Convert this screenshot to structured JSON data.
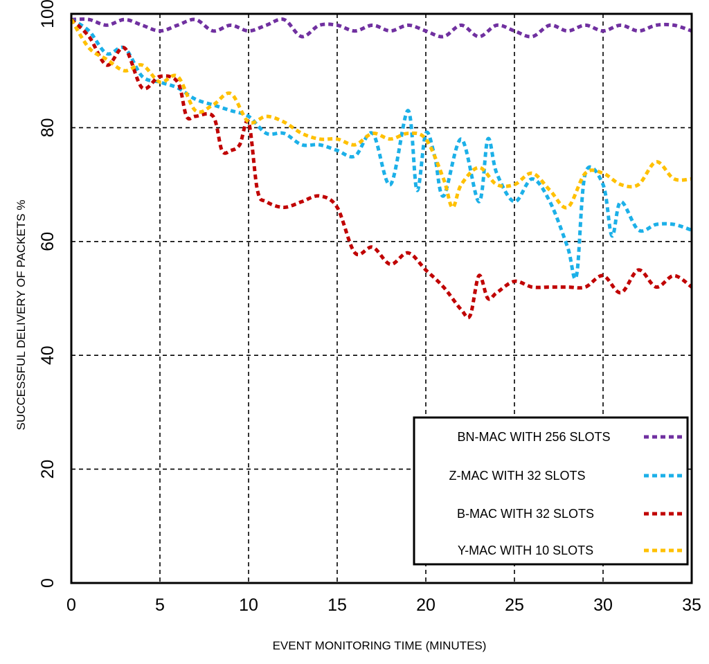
{
  "chart_data": {
    "type": "line",
    "xlabel": "EVENT MONITORING TIME (MINUTES)",
    "ylabel": "SUCCESSFUL DELIVERY OF PACKETS %",
    "xlim": [
      0,
      35
    ],
    "ylim": [
      0,
      100
    ],
    "x_ticks": [
      "0",
      "5",
      "10",
      "15",
      "20",
      "25",
      "30",
      "35"
    ],
    "y_ticks": [
      "0",
      "20",
      "40",
      "60",
      "80",
      "100"
    ],
    "grid": true,
    "legend_position": "bottom-right",
    "series": [
      {
        "name": "BN-MAC WITH 256 SLOTS",
        "color": "#7030A0",
        "x": [
          0,
          1,
          2,
          3,
          4,
          5,
          6,
          7,
          8,
          9,
          10,
          11,
          12,
          13,
          14,
          15,
          16,
          17,
          18,
          19,
          20,
          21,
          22,
          23,
          24,
          25,
          26,
          27,
          28,
          29,
          30,
          31,
          32,
          33,
          34,
          35
        ],
        "y": [
          99,
          99,
          98,
          99,
          98,
          97,
          98,
          99,
          97,
          98,
          97,
          98,
          99,
          96,
          98,
          98,
          97,
          98,
          97,
          98,
          97,
          96,
          98,
          96,
          98,
          97,
          96,
          98,
          97,
          98,
          97,
          98,
          97,
          98,
          98,
          97
        ]
      },
      {
        "name": "Z-MAC WITH 32 SLOTS",
        "color": "#1CB0E8",
        "x": [
          0,
          1,
          2,
          3,
          4,
          5,
          6,
          7,
          8,
          9,
          10,
          11,
          12,
          13,
          14,
          15,
          16,
          17,
          18,
          19,
          19.5,
          20,
          20.5,
          21,
          22,
          23,
          23.5,
          24,
          25,
          26,
          27,
          28,
          28.5,
          29,
          30,
          30.5,
          31,
          32,
          33,
          34,
          35
        ],
        "y": [
          99,
          97,
          93,
          94,
          89,
          88,
          87,
          85,
          84,
          83,
          82,
          79,
          79,
          77,
          77,
          76,
          75,
          79,
          70,
          83,
          69,
          79,
          75,
          68,
          78,
          67,
          78,
          72,
          67,
          71,
          67,
          59,
          54,
          72,
          70,
          61,
          67,
          62,
          63,
          63,
          62
        ]
      },
      {
        "name": "B-MAC WITH 32 SLOTS",
        "color": "#C00000",
        "x": [
          0,
          1,
          2,
          3,
          4,
          5,
          6,
          6.5,
          7,
          8,
          8.5,
          9,
          9.5,
          10,
          10.5,
          11,
          12,
          13,
          14,
          15,
          16,
          17,
          18,
          19,
          20,
          21,
          22,
          22.5,
          23,
          23.5,
          24,
          25,
          26,
          27,
          28,
          29,
          30,
          31,
          32,
          33,
          34,
          35
        ],
        "y": [
          99,
          96,
          91,
          94,
          87,
          89,
          88,
          82,
          82,
          82,
          76,
          76,
          77,
          81,
          69,
          67,
          66,
          67,
          68,
          66,
          58,
          59,
          56,
          58,
          55,
          52,
          48,
          47,
          54,
          50,
          51,
          53,
          52,
          52,
          52,
          52,
          54,
          51,
          55,
          52,
          54,
          52
        ]
      },
      {
        "name": "Y-MAC WITH 10 SLOTS",
        "color": "#FFC000",
        "x": [
          0,
          1,
          2,
          3,
          4,
          5,
          6,
          7,
          8,
          9,
          10,
          11,
          12,
          13,
          14,
          15,
          16,
          17,
          18,
          19,
          20,
          21,
          21.5,
          22,
          23,
          24,
          25,
          26,
          27,
          28,
          29,
          30,
          31,
          32,
          33,
          34,
          35
        ],
        "y": [
          99,
          94,
          92,
          90,
          91,
          88,
          89,
          83,
          84,
          86,
          81,
          82,
          81,
          79,
          78,
          78,
          77,
          79,
          78,
          79,
          78,
          71,
          66,
          70,
          73,
          70,
          70,
          72,
          69,
          66,
          72,
          72,
          70,
          70,
          74,
          71,
          71
        ]
      }
    ]
  }
}
